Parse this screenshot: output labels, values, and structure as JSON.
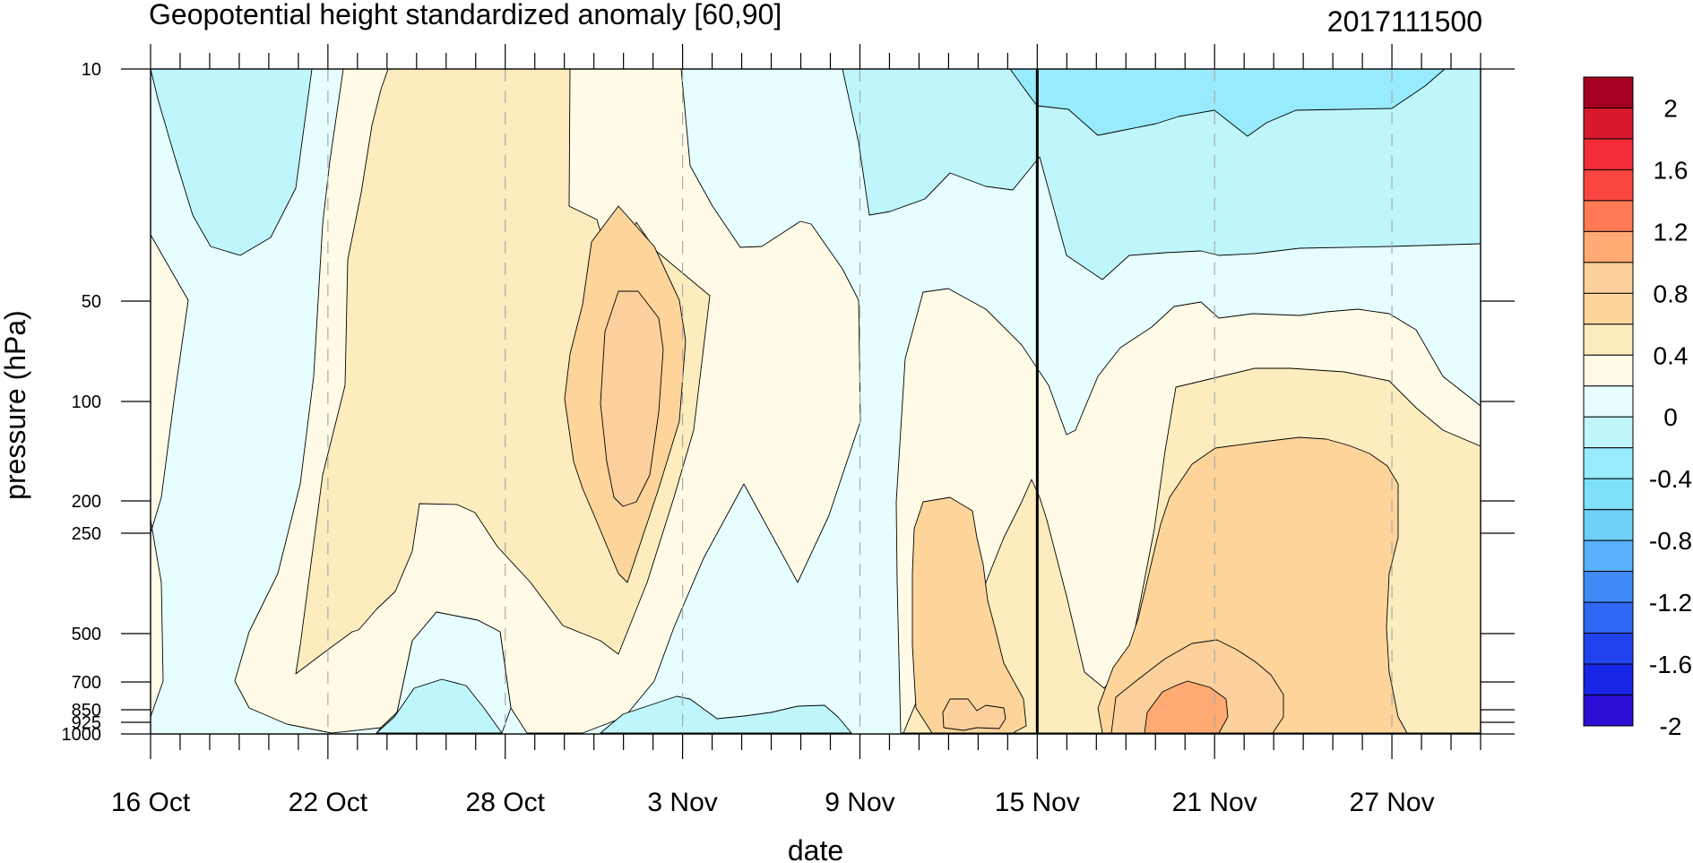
{
  "chart_data": {
    "type": "heatmap",
    "title": "Geopotential height standardized anomaly [60,90]",
    "date_label": "2017111500",
    "xlabel": "date",
    "ylabel": "pressure (hPa)",
    "x_ticks": [
      "16 Oct",
      "22 Oct",
      "28 Oct",
      "3 Nov",
      "9 Nov",
      "15 Nov",
      "21 Nov",
      "27 Nov"
    ],
    "y_ticks": [
      "10",
      "50",
      "100",
      "200",
      "250",
      "500",
      "700",
      "850",
      "925",
      "1000"
    ],
    "y_scale": "log-pressure (inverted)",
    "xlim": [
      "16 Oct",
      "30 Nov"
    ],
    "ylim": [
      1000,
      10
    ],
    "vertical_marker": "15 Nov",
    "grid": "dashed vertical lines at labeled dates",
    "colorbar": {
      "labels": [
        "2",
        "1.6",
        "1.2",
        "0.8",
        "0.4",
        "0",
        "-0.4",
        "-0.8",
        "-1.2",
        "-1.6",
        "-2"
      ],
      "levels": [
        2.0,
        1.8,
        1.6,
        1.4,
        1.2,
        1.0,
        0.8,
        0.6,
        0.4,
        0.2,
        0.0,
        -0.2,
        -0.4,
        -0.6,
        -0.8,
        -1.0,
        -1.2,
        -1.4,
        -1.6,
        -1.8,
        -2.0
      ],
      "colors": [
        "#a50021",
        "#d7192b",
        "#f22c36",
        "#fa4640",
        "#ff7a55",
        "#ffa973",
        "#fcd09c",
        "#fdd49a",
        "#fdedbe",
        "#fffbe6",
        "#e6fefe",
        "#bef6fc",
        "#97ebfc",
        "#7ee0fa",
        "#6ecff8",
        "#58b1fa",
        "#3e8cf8",
        "#2e67f4",
        "#2043ee",
        "#1725e4",
        "#2a0fd4"
      ]
    },
    "regions": [
      {
        "name": "neg-0-0.2-background",
        "fill": "#e6fefe"
      },
      {
        "name": "pos-0-0.2-left-strip",
        "fill": "#fffbe6"
      },
      {
        "name": "neg-0.2-0.4-top-left",
        "fill": "#bef6fc"
      },
      {
        "name": "pos-0-0.2-left-main",
        "fill": "#fffbe6"
      },
      {
        "name": "pos-0.2-0.4-left",
        "fill": "#fdedbe"
      },
      {
        "name": "neg-0-0.2-bottom-pocket",
        "fill": "#e6fefe"
      },
      {
        "name": "neg-0.2-0.4-bottom-pocket",
        "fill": "#bef6fc"
      },
      {
        "name": "pos-0.4-0.6-center",
        "fill": "#fdd49a"
      },
      {
        "name": "pos-0.6-0.8-center",
        "fill": "#fcd09c"
      },
      {
        "name": "neg-0.2-0.4-bottom-mid",
        "fill": "#bef6fc"
      },
      {
        "name": "neg-0.2-0.4-top-right",
        "fill": "#bef6fc"
      },
      {
        "name": "neg-0.4-0.6-top-right",
        "fill": "#97ebfc"
      },
      {
        "name": "pos-0-0.2-right-main",
        "fill": "#fffbe6"
      },
      {
        "name": "pos-0.2-0.4-right",
        "fill": "#fdedbe"
      },
      {
        "name": "pos-0.4-0.6-right",
        "fill": "#fdd49a"
      },
      {
        "name": "pos-0.6-0.8-right",
        "fill": "#fcd09c"
      },
      {
        "name": "pos-0.8-1.0-right",
        "fill": "#ffa973"
      },
      {
        "name": "pos-0.4-0.6-small-blob",
        "fill": "#fdd49a"
      },
      {
        "name": "pos-0.6-0.8-small-blob",
        "fill": "#fcd09c"
      }
    ]
  }
}
